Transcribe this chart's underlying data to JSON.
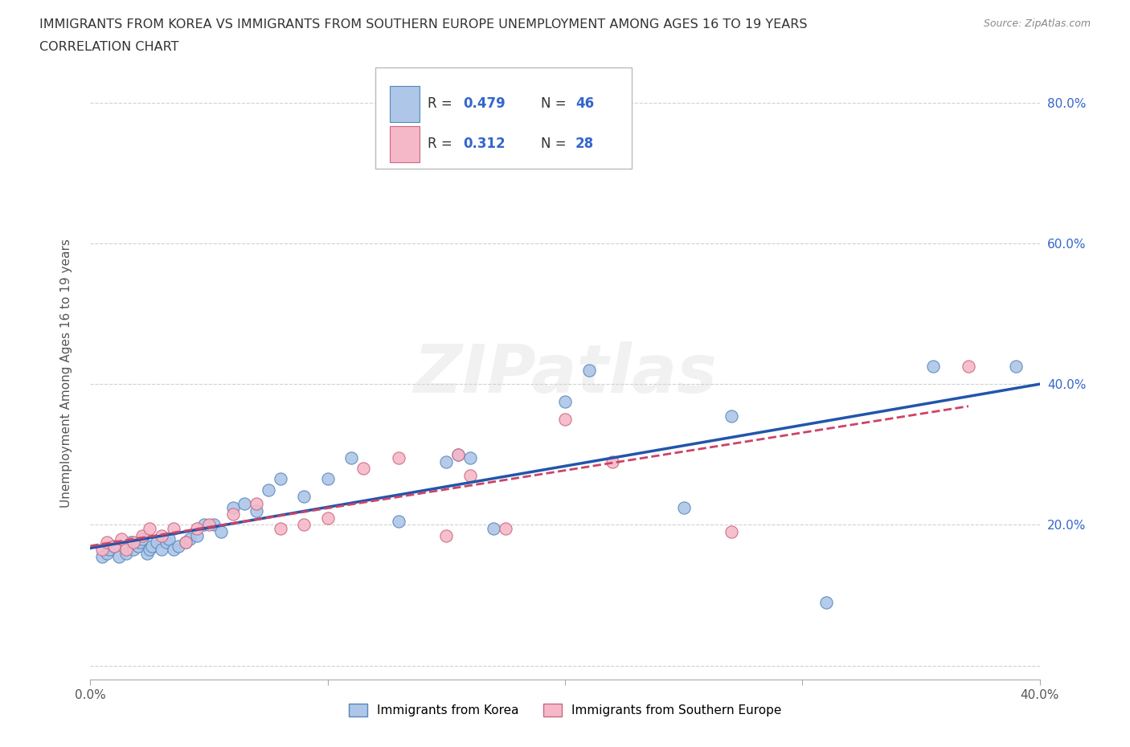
{
  "title_line1": "IMMIGRANTS FROM KOREA VS IMMIGRANTS FROM SOUTHERN EUROPE UNEMPLOYMENT AMONG AGES 16 TO 19 YEARS",
  "title_line2": "CORRELATION CHART",
  "source": "Source: ZipAtlas.com",
  "ylabel": "Unemployment Among Ages 16 to 19 years",
  "xlim": [
    0.0,
    0.4
  ],
  "ylim": [
    -0.02,
    0.85
  ],
  "xticks": [
    0.0,
    0.1,
    0.2,
    0.3,
    0.4
  ],
  "yticks": [
    0.0,
    0.2,
    0.4,
    0.6,
    0.8
  ],
  "xticklabels": [
    "0.0%",
    "",
    "",
    "",
    "40.0%"
  ],
  "yticklabels_right": [
    "20.0%",
    "40.0%",
    "60.0%",
    "80.0%"
  ],
  "korea_color": "#aec6e8",
  "korea_edge": "#5588bb",
  "southern_europe_color": "#f5b8c8",
  "southern_europe_edge": "#cc6680",
  "line_korea_color": "#2255aa",
  "line_southern_europe_color": "#cc4466",
  "legend_r_korea": "0.479",
  "legend_n_korea": "46",
  "legend_r_southern": "0.312",
  "legend_n_southern": "28",
  "legend_label_korea": "Immigrants from Korea",
  "legend_label_southern": "Immigrants from Southern Europe",
  "watermark": "ZIPatlas",
  "korea_x": [
    0.005,
    0.007,
    0.008,
    0.01,
    0.012,
    0.015,
    0.017,
    0.018,
    0.02,
    0.021,
    0.022,
    0.024,
    0.025,
    0.026,
    0.028,
    0.03,
    0.032,
    0.033,
    0.035,
    0.037,
    0.04,
    0.042,
    0.045,
    0.048,
    0.052,
    0.055,
    0.06,
    0.065,
    0.07,
    0.075,
    0.08,
    0.09,
    0.1,
    0.11,
    0.13,
    0.15,
    0.155,
    0.16,
    0.17,
    0.2,
    0.21,
    0.25,
    0.27,
    0.31,
    0.355,
    0.39
  ],
  "korea_y": [
    0.155,
    0.16,
    0.165,
    0.17,
    0.155,
    0.16,
    0.175,
    0.165,
    0.17,
    0.175,
    0.18,
    0.16,
    0.165,
    0.17,
    0.175,
    0.165,
    0.175,
    0.18,
    0.165,
    0.17,
    0.175,
    0.18,
    0.185,
    0.2,
    0.2,
    0.19,
    0.225,
    0.23,
    0.22,
    0.25,
    0.265,
    0.24,
    0.265,
    0.295,
    0.205,
    0.29,
    0.3,
    0.295,
    0.195,
    0.375,
    0.42,
    0.225,
    0.355,
    0.09,
    0.425,
    0.425
  ],
  "southern_x": [
    0.005,
    0.007,
    0.01,
    0.013,
    0.015,
    0.018,
    0.022,
    0.025,
    0.03,
    0.035,
    0.04,
    0.045,
    0.05,
    0.06,
    0.07,
    0.08,
    0.09,
    0.1,
    0.115,
    0.13,
    0.15,
    0.155,
    0.16,
    0.175,
    0.2,
    0.22,
    0.27,
    0.37
  ],
  "southern_y": [
    0.165,
    0.175,
    0.17,
    0.18,
    0.165,
    0.175,
    0.185,
    0.195,
    0.185,
    0.195,
    0.175,
    0.195,
    0.2,
    0.215,
    0.23,
    0.195,
    0.2,
    0.21,
    0.28,
    0.295,
    0.185,
    0.3,
    0.27,
    0.195,
    0.35,
    0.29,
    0.19,
    0.425
  ]
}
